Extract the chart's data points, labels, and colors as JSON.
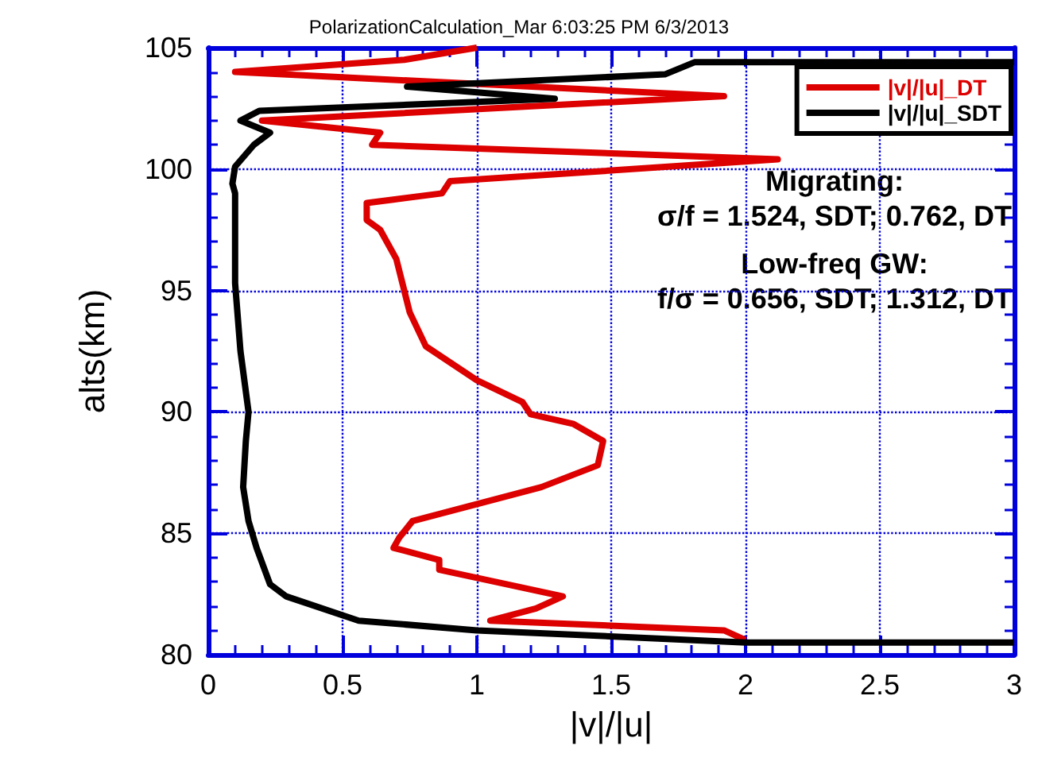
{
  "chart_data": {
    "type": "line",
    "title": "PolarizationCalculation_Mar 6:03:25 PM 6/3/2013",
    "xlabel": "|v|/|u|",
    "ylabel": "alts(km)",
    "xlim": [
      0,
      3
    ],
    "xticks": [
      0,
      0.5,
      1,
      1.5,
      2,
      2.5,
      3
    ],
    "ylim": [
      80,
      105
    ],
    "yticks": [
      80,
      85,
      90,
      95,
      100,
      105
    ],
    "grid": true,
    "legend": "top right",
    "marker": "none",
    "line_style": "solid",
    "annotations": [
      "Migrating:",
      "σ/f = 1.524, SDT; 0.762, DT",
      "Low-freq GW:",
      "f/σ = 0.656, SDT; 1.312, DT"
    ],
    "series": [
      {
        "name": "|v|/|u|_DT",
        "color": "#dd0000",
        "x": [
          2.0,
          1.92,
          1.05,
          1.22,
          1.32,
          0.86,
          0.86,
          0.69,
          0.71,
          0.76,
          1.24,
          1.45,
          1.47,
          1.36,
          1.2,
          1.17,
          1.0,
          0.81,
          0.75,
          0.7,
          0.64,
          0.59,
          0.59,
          0.87,
          0.9,
          2.12,
          0.61,
          0.64,
          0.2,
          1.92,
          0.1,
          0.73,
          1.0
        ],
        "values": [
          80.6,
          81.0,
          81.4,
          81.9,
          82.4,
          83.5,
          83.9,
          84.4,
          84.8,
          85.5,
          86.9,
          87.8,
          88.8,
          89.5,
          89.9,
          90.4,
          91.3,
          92.7,
          94.1,
          96.3,
          97.5,
          97.9,
          98.6,
          99.0,
          99.5,
          100.4,
          101.0,
          101.5,
          102.0,
          103.0,
          104.0,
          104.5,
          105
        ]
      },
      {
        "name": "|v|/|u|_SDT",
        "color": "#000000",
        "x": [
          3,
          2.0,
          1.0,
          0.56,
          0.29,
          0.23,
          0.18,
          0.15,
          0.13,
          0.14,
          0.15,
          0.12,
          0.1,
          0.1,
          0.09,
          0.1,
          0.17,
          0.23,
          0.12,
          0.19,
          1.29,
          0.74,
          1.7,
          1.81,
          3
        ],
        "values": [
          80.5,
          80.5,
          81.0,
          81.4,
          82.4,
          82.9,
          84.4,
          85.5,
          86.9,
          88.8,
          90.0,
          92.5,
          95.3,
          99.0,
          99.4,
          100.1,
          101.0,
          101.5,
          102.0,
          102.4,
          102.9,
          103.4,
          103.9,
          104.4,
          104.4
        ]
      }
    ]
  }
}
